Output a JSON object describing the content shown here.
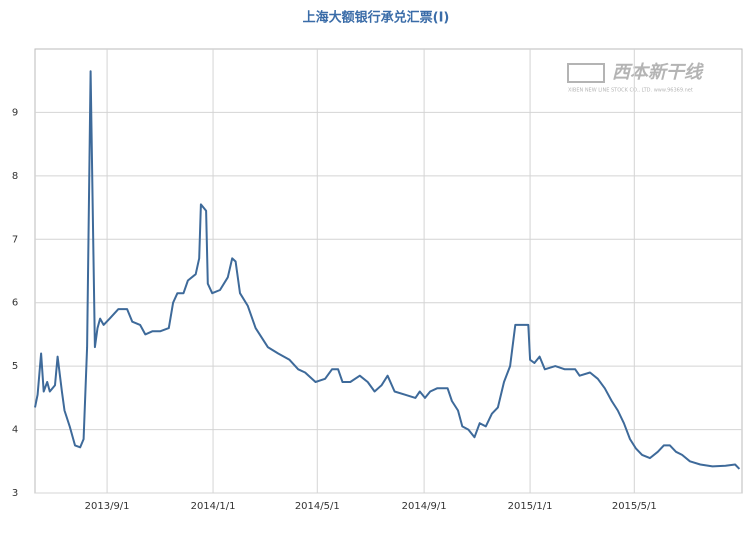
{
  "chart_data": {
    "type": "line",
    "title": "上海大额银行承兑汇票(Ⅰ)",
    "watermark": {
      "logo": "西本新干线",
      "caption": "XIBEN NEW LINE STOCK CO., LTD.  www.96369.net"
    },
    "x": [
      "2013/6/10",
      "2013/6/13",
      "2013/6/17",
      "2013/6/20",
      "2013/6/24",
      "2013/6/27",
      "2013/7/3",
      "2013/7/6",
      "2013/7/11",
      "2013/7/14",
      "2013/7/20",
      "2013/7/26",
      "2013/8/1",
      "2013/8/5",
      "2013/8/9",
      "2013/8/13",
      "2013/8/16",
      "2013/8/18",
      "2013/8/21",
      "2013/8/24",
      "2013/8/28",
      "2013/9/4",
      "2013/9/14",
      "2013/9/24",
      "2013/9/30",
      "2013/10/9",
      "2013/10/15",
      "2013/10/23",
      "2013/11/1",
      "2013/11/11",
      "2013/11/16",
      "2013/11/21",
      "2013/11/28",
      "2013/12/3",
      "2013/12/12",
      "2013/12/16",
      "2013/12/18",
      "2013/12/24",
      "2013/12/26",
      "2013/12/31",
      "2014/1/9",
      "2014/1/18",
      "2014/1/23",
      "2014/1/27",
      "2014/2/1",
      "2014/2/10",
      "2014/2/19",
      "2014/2/26",
      "2014/3/5",
      "2014/3/17",
      "2014/3/30",
      "2014/4/9",
      "2014/4/17",
      "2014/4/29",
      "2014/5/10",
      "2014/5/18",
      "2014/5/25",
      "2014/5/30",
      "2014/6/8",
      "2014/6/19",
      "2014/6/28",
      "2014/7/6",
      "2014/7/14",
      "2014/7/21",
      "2014/7/29",
      "2014/8/10",
      "2014/8/22",
      "2014/8/27",
      "2014/9/2",
      "2014/9/8",
      "2014/9/16",
      "2014/9/28",
      "2014/10/3",
      "2014/10/10",
      "2014/10/15",
      "2014/10/22",
      "2014/10/29",
      "2014/11/4",
      "2014/11/11",
      "2014/11/18",
      "2014/11/25",
      "2014/12/2",
      "2014/12/9",
      "2014/12/15",
      "2014/12/30",
      "2015/1/1",
      "2015/1/6",
      "2015/1/12",
      "2015/1/18",
      "2015/1/30",
      "2015/2/10",
      "2015/2/22",
      "2015/2/27",
      "2015/3/11",
      "2015/3/20",
      "2015/3/28",
      "2015/4/5",
      "2015/4/12",
      "2015/4/19",
      "2015/4/26",
      "2015/5/3",
      "2015/5/10",
      "2015/5/19",
      "2015/5/28",
      "2015/6/4",
      "2015/6/11",
      "2015/6/18",
      "2015/6/25",
      "2015/7/4",
      "2015/7/16",
      "2015/7/30",
      "2015/8/14",
      "2015/8/25",
      "2015/8/30"
    ],
    "series": [
      {
        "name": "上海大额银行承兑汇票(Ⅰ)",
        "color": "#3e6a9a",
        "values": [
          4.35,
          4.55,
          5.2,
          4.6,
          4.75,
          4.6,
          4.7,
          5.15,
          4.6,
          4.3,
          4.05,
          3.75,
          3.72,
          3.85,
          5.3,
          9.65,
          7.0,
          5.3,
          5.6,
          5.75,
          5.65,
          5.75,
          5.9,
          5.9,
          5.7,
          5.65,
          5.5,
          5.55,
          5.55,
          5.6,
          6.0,
          6.15,
          6.15,
          6.35,
          6.45,
          6.7,
          7.55,
          7.45,
          6.3,
          6.15,
          6.2,
          6.4,
          6.7,
          6.65,
          6.15,
          5.95,
          5.6,
          5.45,
          5.3,
          5.2,
          5.1,
          4.95,
          4.9,
          4.75,
          4.8,
          4.95,
          4.95,
          4.75,
          4.75,
          4.85,
          4.75,
          4.6,
          4.7,
          4.85,
          4.6,
          4.55,
          4.5,
          4.6,
          4.5,
          4.6,
          4.65,
          4.65,
          4.45,
          4.3,
          4.05,
          4.0,
          3.88,
          4.1,
          4.05,
          4.25,
          4.35,
          4.75,
          5.0,
          5.65,
          5.65,
          5.1,
          5.05,
          5.15,
          4.95,
          5.0,
          4.95,
          4.95,
          4.85,
          4.9,
          4.8,
          4.65,
          4.45,
          4.3,
          4.1,
          3.85,
          3.7,
          3.6,
          3.55,
          3.65,
          3.75,
          3.75,
          3.65,
          3.6,
          3.5,
          3.45,
          3.42,
          3.43,
          3.45,
          3.38
        ]
      }
    ],
    "xlim": [
      "2013/6/10",
      "2015/9/2"
    ],
    "xticks": [
      "2013/9/1",
      "2014/1/1",
      "2014/5/1",
      "2014/9/1",
      "2015/1/1",
      "2015/5/1"
    ],
    "ylim": [
      3,
      10
    ],
    "yticks": [
      3,
      4,
      5,
      6,
      7,
      8,
      9
    ],
    "grid": true
  }
}
